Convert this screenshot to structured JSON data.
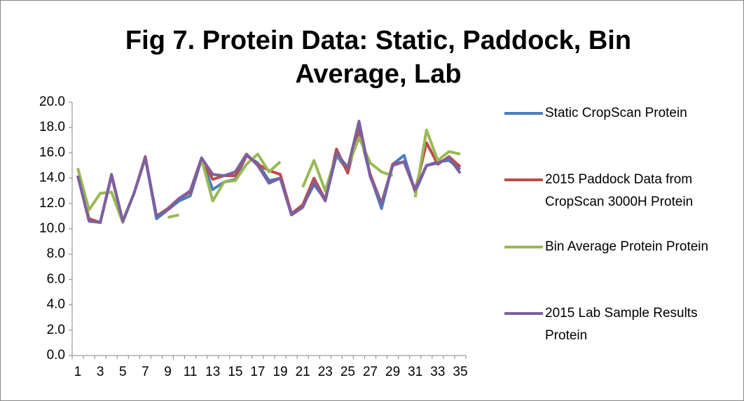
{
  "chart_data": {
    "type": "line",
    "title": "Fig 7. Protein Data: Static, Paddock, Bin Average, Lab",
    "categories": [
      1,
      null,
      3,
      null,
      5,
      null,
      7,
      null,
      9,
      null,
      11,
      null,
      13,
      null,
      15,
      null,
      17,
      null,
      19,
      null,
      21,
      null,
      23,
      null,
      25,
      null,
      27,
      null,
      29,
      null,
      31,
      null,
      33,
      null,
      35
    ],
    "ylim": [
      0,
      20
    ],
    "yticks": [
      {
        "value": 0,
        "label": "0.0"
      },
      {
        "value": 2,
        "label": "2.0"
      },
      {
        "value": 4,
        "label": "4.0"
      },
      {
        "value": 6,
        "label": "6.0"
      },
      {
        "value": 8,
        "label": "8.0"
      },
      {
        "value": 10,
        "label": "10.0"
      },
      {
        "value": 12,
        "label": "12.0"
      },
      {
        "value": 14,
        "label": "14.0"
      },
      {
        "value": 16,
        "label": "16.0"
      },
      {
        "value": 18,
        "label": "18.0"
      },
      {
        "value": 20,
        "label": "20.0"
      }
    ],
    "grid": false,
    "legend": "right",
    "series": [
      {
        "name": "Static CropScan Protein",
        "color": "#4a7ebb",
        "values": [
          14.2,
          10.7,
          10.5,
          14.2,
          10.6,
          12.8,
          15.6,
          10.8,
          11.5,
          12.2,
          12.6,
          15.5,
          13.1,
          13.7,
          13.9,
          15.8,
          15.2,
          13.8,
          14.0,
          11.1,
          11.8,
          13.5,
          12.3,
          15.8,
          14.6,
          17.8,
          14.2,
          11.6,
          15.1,
          15.8,
          12.9,
          15.0,
          15.3,
          15.4,
          14.7
        ]
      },
      {
        "name": "2015 Paddock Data from CropScan 3000H Protein",
        "color": "#be4b48",
        "values": [
          14.2,
          10.8,
          10.5,
          14.2,
          10.6,
          12.8,
          15.7,
          11.0,
          11.6,
          12.4,
          12.9,
          15.5,
          13.9,
          14.2,
          14.2,
          15.8,
          15.1,
          14.6,
          14.3,
          11.2,
          11.9,
          14.0,
          12.3,
          16.3,
          14.4,
          18.0,
          14.3,
          12.0,
          15.1,
          15.3,
          13.0,
          16.8,
          15.1,
          15.7,
          14.9
        ]
      },
      {
        "name": "Bin Average Protein Protein",
        "color": "#98b954",
        "values": [
          14.8,
          11.5,
          12.8,
          12.9,
          10.5,
          12.8,
          15.6,
          null,
          10.9,
          11.1,
          null,
          15.5,
          12.2,
          13.7,
          13.8,
          15.1,
          15.9,
          14.5,
          15.3,
          null,
          13.3,
          15.4,
          13.0,
          15.9,
          14.9,
          17.2,
          15.2,
          14.5,
          14.2,
          null,
          12.5,
          17.8,
          15.4,
          16.1,
          15.9
        ]
      },
      {
        "name": "2015 Lab Sample Results Protein",
        "color": "#7d60a0",
        "values": [
          14.2,
          10.6,
          10.5,
          14.3,
          10.6,
          12.8,
          15.6,
          11.0,
          11.5,
          12.4,
          13.0,
          15.6,
          14.3,
          14.2,
          14.5,
          15.9,
          15.0,
          13.6,
          14.0,
          11.1,
          11.7,
          13.7,
          12.2,
          16.0,
          14.8,
          18.5,
          14.1,
          12.0,
          15.0,
          15.3,
          13.1,
          15.0,
          15.2,
          15.6,
          14.4
        ]
      }
    ]
  }
}
